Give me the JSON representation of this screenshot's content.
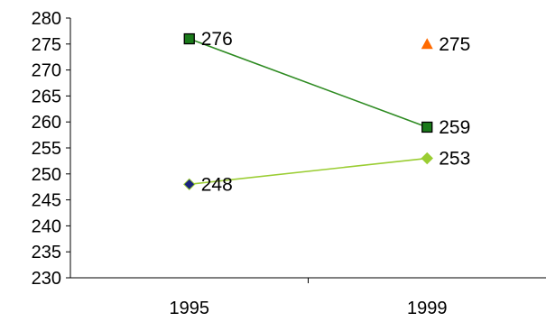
{
  "chart_data": {
    "type": "line",
    "title": "",
    "xlabel": "",
    "ylabel": "",
    "categories": [
      "1995",
      "1999"
    ],
    "ylim": [
      230,
      280
    ],
    "ytick_step": 5,
    "grid": false,
    "legend": "none",
    "series": [
      {
        "values": [
          276,
          259
        ],
        "labels": [
          "276",
          "259"
        ],
        "color": "#2e8b22",
        "marker": "square",
        "marker_fill": "#1a7a1a",
        "marker_edge": "#000000",
        "line": true
      },
      {
        "values": [
          248,
          253
        ],
        "labels": [
          "248",
          "253"
        ],
        "color": "#9acd32",
        "marker": "diamond",
        "marker_fill": "#9acd32",
        "marker_fill_first": "#1a237e",
        "line": true
      },
      {
        "values": [
          null,
          275
        ],
        "labels": [
          "",
          "275"
        ],
        "color": "#ff6a00",
        "marker": "triangle",
        "marker_fill": "#ff6a00",
        "line": false
      }
    ]
  }
}
